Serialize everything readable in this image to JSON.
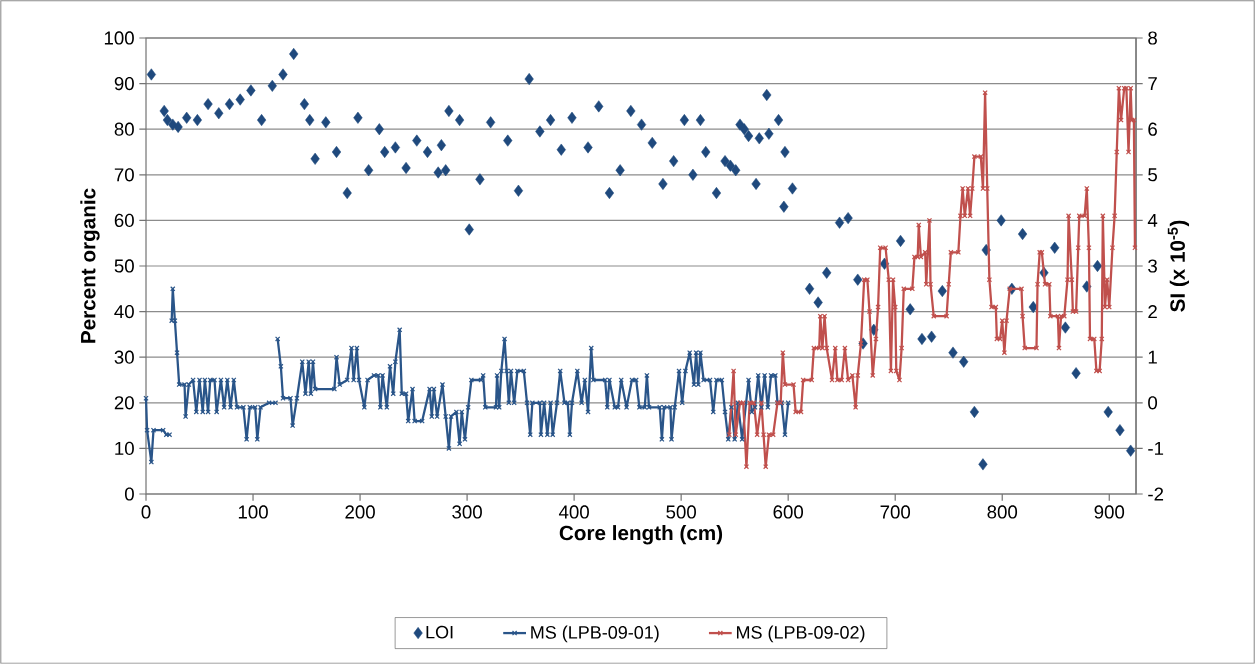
{
  "chart_data": {
    "type": "line",
    "xlabel": "Core length (cm)",
    "ylabel": "Percent organic",
    "y2label": "SI (x 10$^{-5}$)",
    "xlim": [
      0,
      925
    ],
    "xticks": [
      0,
      100,
      200,
      300,
      400,
      500,
      600,
      700,
      800,
      900
    ],
    "ylim": [
      0,
      100
    ],
    "yticks": [
      0,
      10,
      20,
      30,
      40,
      50,
      60,
      70,
      80,
      90,
      100
    ],
    "y2lim": [
      -2,
      8
    ],
    "y2ticks": [
      -2,
      -1,
      0,
      1,
      2,
      3,
      4,
      5,
      6,
      7,
      8
    ],
    "grid": "y",
    "legend": "bottom",
    "series": [
      {
        "name": "LOI",
        "type": "scatter",
        "marker": "diamond",
        "color": "#1f497d",
        "x": [
          5,
          17,
          20,
          25,
          30,
          38,
          48,
          58,
          68,
          78,
          88,
          98,
          108,
          118,
          128,
          138,
          148,
          153,
          158,
          168,
          178,
          188,
          198,
          208,
          218,
          223,
          233,
          243,
          253,
          263,
          273,
          276,
          280,
          283,
          293,
          302,
          312,
          322,
          338,
          348,
          358,
          368,
          378,
          388,
          398,
          413,
          423,
          433,
          443,
          453,
          463,
          473,
          483,
          493,
          503,
          511,
          518,
          523,
          533,
          541,
          546,
          551,
          555,
          559,
          563,
          570,
          573,
          580,
          582,
          591,
          596,
          597,
          604,
          620,
          628,
          636,
          648,
          656,
          665,
          670,
          680,
          690,
          705,
          714,
          725,
          734,
          744,
          754,
          764,
          774,
          782,
          785,
          799,
          809,
          819,
          829,
          839,
          849,
          859,
          869,
          879,
          889,
          899,
          910,
          920
        ],
        "values": [
          92,
          84,
          82,
          81,
          80.5,
          82.5,
          82,
          85.5,
          83.5,
          85.5,
          86.5,
          88.5,
          82,
          89.5,
          92,
          96.5,
          85.5,
          82,
          73.5,
          81.5,
          75,
          66,
          82.5,
          71,
          80,
          75,
          76,
          71.5,
          77.5,
          75,
          70.5,
          76.5,
          71,
          84,
          82,
          58,
          69,
          81.5,
          77.5,
          66.5,
          91,
          79.5,
          82,
          75.5,
          82.5,
          76,
          85,
          66,
          71,
          84,
          81,
          77,
          68,
          73,
          82,
          70,
          82,
          75,
          66,
          73,
          72,
          71,
          81,
          80,
          78.5,
          68,
          78,
          87.5,
          79,
          82,
          63,
          75,
          67,
          45,
          42,
          48.5,
          59.5,
          60.5,
          47,
          33,
          36,
          50.5,
          55.5,
          40.5,
          34,
          34.5,
          44.5,
          31,
          29,
          18,
          6.5,
          53.5,
          60,
          45,
          57,
          41,
          48.5,
          54,
          36.5,
          26.5,
          45.5,
          50,
          18,
          14,
          9.5
        ]
      },
      {
        "name": "MS (LPB-09-01)",
        "marker": "cross",
        "axis": "y2",
        "color": "#2a5589",
        "x": [
          0,
          1,
          5,
          7,
          16,
          19,
          22,
          23,
          24,
          25,
          27,
          29,
          31,
          36,
          37,
          40,
          44,
          47,
          50,
          53,
          55,
          58,
          60,
          64,
          66,
          70,
          73,
          76,
          79,
          82,
          85,
          91,
          94,
          97,
          102,
          104,
          107,
          115,
          121,
          122,
          123,
          126,
          128,
          135,
          137,
          141,
          146,
          149,
          152,
          154,
          156,
          158,
          176,
          178,
          181,
          188,
          192,
          194,
          197,
          199,
          204,
          207,
          213,
          217,
          219,
          221,
          225,
          228,
          231,
          233,
          237,
          239,
          243,
          245,
          249,
          251,
          258,
          265,
          267,
          269,
          272,
          277,
          280,
          283,
          285,
          290,
          293,
          295,
          298,
          301,
          304,
          313,
          315,
          317,
          327,
          328,
          330,
          332,
          335,
          337,
          339,
          341,
          344,
          347,
          353,
          356,
          359,
          361,
          368,
          369,
          372,
          375,
          378,
          380,
          384,
          387,
          391,
          394,
          396,
          398,
          403,
          407,
          410,
          413,
          416,
          418,
          429,
          431,
          433,
          438,
          441,
          444,
          449,
          454,
          458,
          461,
          466,
          468,
          470,
          480,
          482,
          484,
          490,
          491,
          494,
          498,
          501,
          504,
          508,
          512,
          514,
          516,
          518,
          521,
          527,
          530,
          533,
          538,
          541,
          544,
          547,
          550,
          553,
          557,
          563,
          566,
          569,
          572,
          575,
          578,
          581,
          584,
          588,
          590,
          594,
          597,
          600
        ],
        "values": [
          0.1,
          -0.6,
          -1.3,
          -0.6,
          -0.6,
          -0.7,
          -0.7,
          null,
          1.8,
          2.5,
          1.8,
          1.1,
          0.4,
          0.4,
          -0.3,
          0.4,
          0.5,
          -0.2,
          0.5,
          -0.2,
          0.5,
          -0.2,
          0.5,
          0.5,
          -0.2,
          0.5,
          -0.1,
          0.5,
          -0.1,
          0.5,
          -0.1,
          -0.1,
          -0.8,
          -0.1,
          -0.1,
          -0.8,
          -0.1,
          0,
          0,
          null,
          1.4,
          0.8,
          0.1,
          0.1,
          -0.5,
          0.1,
          0.9,
          0.2,
          0.9,
          0.2,
          0.9,
          0.3,
          0.3,
          1,
          0.4,
          0.5,
          1.2,
          0.5,
          1.2,
          0.5,
          -0.1,
          0.5,
          0.6,
          0.6,
          -0.1,
          0.6,
          -0.1,
          0.8,
          0.2,
          0.9,
          1.6,
          0.2,
          0.2,
          -0.4,
          0.3,
          -0.4,
          -0.4,
          0.3,
          -0.3,
          0.3,
          -0.3,
          0.4,
          -0.3,
          -1,
          -0.3,
          -0.2,
          -0.9,
          -0.2,
          -0.8,
          -0.1,
          0.5,
          0.5,
          0.6,
          -0.1,
          -0.1,
          0.6,
          -0.1,
          0.7,
          1.4,
          0.7,
          0,
          0.7,
          0,
          0.7,
          0.7,
          0,
          -0.7,
          0,
          0,
          -0.7,
          0,
          -0.7,
          0,
          -0.7,
          0,
          0.7,
          0,
          0,
          -0.7,
          0,
          0.7,
          0,
          0.5,
          -0.2,
          1.2,
          0.5,
          0.5,
          -0.1,
          0.5,
          -0.1,
          -0.1,
          0.5,
          -0.1,
          0.5,
          0.5,
          -0.1,
          -0.1,
          0.6,
          -0.1,
          -0.1,
          -0.8,
          -0.1,
          -0.1,
          -0.8,
          -0.1,
          0.7,
          0,
          0.7,
          1.1,
          0.4,
          1.1,
          0.4,
          1.1,
          0.5,
          0.5,
          -0.2,
          0.5,
          0.5,
          -0.2,
          -0.8,
          -0.1,
          -0.8,
          0,
          -0.8,
          0.5,
          -0.2,
          -0.1,
          0.6,
          -0.1,
          0.6,
          -0.1,
          0.6,
          0.6,
          0,
          0,
          -0.7,
          0
        ]
      },
      {
        "name": "MS (LPB-09-02)",
        "marker": "cross",
        "axis": "y2",
        "color": "#c0504d",
        "x": [
          545,
          549,
          551,
          555,
          558,
          561,
          564,
          568,
          571,
          575,
          577,
          579,
          582,
          586,
          590,
          593,
          595,
          597,
          605,
          607,
          612,
          614,
          622,
          624,
          629,
          630,
          632,
          634,
          636,
          641,
          644,
          646,
          650,
          653,
          656,
          660,
          663,
          665,
          668,
          671,
          674,
          676,
          679,
          682,
          684,
          686,
          691,
          694,
          696,
          698,
          700,
          701,
          704,
          706,
          708,
          716,
          718,
          721,
          722,
          724,
          728,
          729,
          732,
          733,
          736,
          748,
          750,
          752,
          759,
          761,
          763,
          765,
          768,
          770,
          772,
          774,
          780,
          782,
          784,
          786,
          788,
          790,
          794,
          795,
          798,
          800,
          802,
          804,
          807,
          818,
          819,
          821,
          832,
          833,
          835,
          837,
          840,
          844,
          845,
          852,
          853,
          855,
          858,
          861,
          862,
          865,
          866,
          869,
          871,
          872,
          877,
          879,
          881,
          882,
          886,
          888,
          891,
          893,
          894,
          896,
          898,
          900,
          903,
          905,
          907,
          909,
          911,
          914,
          916,
          918,
          920,
          921,
          923,
          924
        ],
        "values": [
          -0.7,
          0.7,
          -0.7,
          0,
          0,
          -1.4,
          0,
          0,
          -0.7,
          0,
          -0.7,
          -1.4,
          -0.7,
          -0.7,
          0,
          0,
          1.1,
          0.4,
          0.4,
          -0.2,
          -0.2,
          0.5,
          0.5,
          1.2,
          1.2,
          1.9,
          1.2,
          1.9,
          1.2,
          0.5,
          1.2,
          0.5,
          0.5,
          1.2,
          0.5,
          0.6,
          -0.1,
          0.6,
          1.3,
          2.7,
          2.7,
          2,
          0.6,
          1.4,
          2.1,
          3.4,
          3.4,
          2.7,
          0.7,
          2.7,
          2.1,
          0.7,
          0.5,
          1.2,
          2.5,
          2.5,
          3.2,
          3.2,
          3.9,
          3.2,
          3.3,
          2.6,
          4,
          2.6,
          1.9,
          1.9,
          2.6,
          3.3,
          3.3,
          4.1,
          4.7,
          4.1,
          4.7,
          4.1,
          4.7,
          5.4,
          5.4,
          4.7,
          6.8,
          4.7,
          2.7,
          2.1,
          2.1,
          1.4,
          1.4,
          1.8,
          1.1,
          1.8,
          2.5,
          2.5,
          1.9,
          1.2,
          1.2,
          2.6,
          3.3,
          3.3,
          2.6,
          2.6,
          1.9,
          1.9,
          1.2,
          1.9,
          1.9,
          2.7,
          4.1,
          2.7,
          2,
          2,
          3.4,
          4.1,
          4.1,
          4.7,
          3.4,
          1.4,
          1.4,
          0.7,
          0.7,
          1.4,
          4.1,
          2.1,
          2.7,
          2.1,
          3.4,
          4.1,
          5.5,
          6.9,
          6.2,
          6.9,
          6.9,
          5.5,
          6.9,
          6.2,
          6.2,
          3.4
        ]
      }
    ]
  }
}
